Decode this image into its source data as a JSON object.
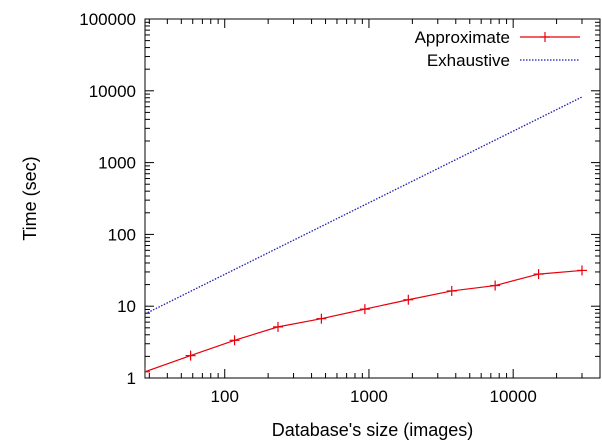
{
  "chart_data": {
    "type": "line",
    "title": "",
    "xlabel": "Database's size (images)",
    "ylabel": "Time (sec)",
    "x_scale": "log",
    "y_scale": "log",
    "xlim": [
      28,
      40000
    ],
    "ylim": [
      1,
      100000
    ],
    "x_ticks": [
      100,
      1000,
      10000
    ],
    "x_tick_labels": [
      "100",
      "1000",
      "10000"
    ],
    "y_ticks": [
      1,
      10,
      100,
      1000,
      10000,
      100000
    ],
    "y_tick_labels": [
      "1",
      "10",
      "100",
      "1000",
      "10000",
      "100000"
    ],
    "grid": false,
    "legend_position": "top-right",
    "series": [
      {
        "name": "Approximate",
        "color": "#e8000b",
        "style": "solid",
        "marker": "plus",
        "x": [
          28,
          58,
          117,
          234,
          468,
          937,
          1875,
          3750,
          7500,
          15000,
          30000
        ],
        "y": [
          1.22,
          2.05,
          3.35,
          5.15,
          6.7,
          9.1,
          12.3,
          16.3,
          19.4,
          28,
          31.5
        ]
      },
      {
        "name": "Exhaustive",
        "color": "#1a1ab8",
        "style": "dotted",
        "marker": "none",
        "x": [
          28,
          30000
        ],
        "y": [
          7.8,
          8200
        ]
      }
    ]
  }
}
